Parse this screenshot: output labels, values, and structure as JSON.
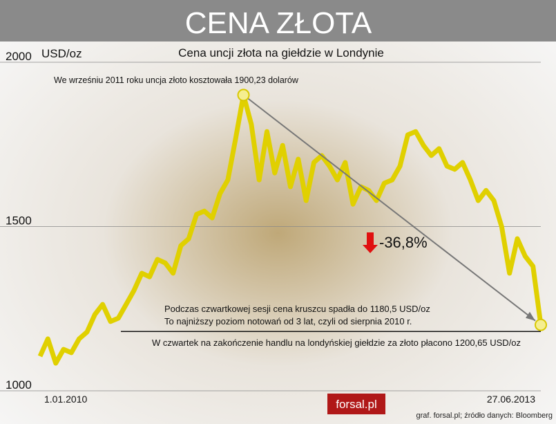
{
  "chart_data": {
    "type": "line",
    "title": "CENA ZŁOTA",
    "subtitle": "Cena uncji złota na giełdzie w Londynie",
    "y_label": "USD/oz",
    "categories": [
      "1.01.2010",
      null,
      null,
      null,
      null,
      null,
      null,
      null,
      null,
      null,
      null,
      null,
      null,
      null,
      null,
      null,
      null,
      null,
      null,
      null,
      null,
      null,
      null,
      null,
      null,
      null,
      null,
      null,
      null,
      null,
      null,
      null,
      null,
      null,
      null,
      null,
      null,
      null,
      null,
      null,
      null,
      null,
      null,
      null,
      null,
      null,
      null,
      null,
      null,
      null,
      null,
      null,
      null,
      null,
      null,
      null,
      null,
      null,
      null,
      null,
      null,
      null,
      null,
      null,
      "27.06.2013"
    ],
    "series": [
      {
        "name": "Cena złota",
        "color": "#e0d000",
        "values": [
          1105,
          1158,
          1084,
          1126,
          1116,
          1158,
          1179,
          1232,
          1263,
          1211,
          1221,
          1263,
          1305,
          1358,
          1347,
          1400,
          1389,
          1358,
          1442,
          1463,
          1537,
          1547,
          1526,
          1600,
          1642,
          1768,
          1900.23,
          1811,
          1642,
          1789,
          1663,
          1747,
          1621,
          1705,
          1579,
          1695,
          1716,
          1684,
          1642,
          1695,
          1568,
          1621,
          1610,
          1579,
          1632,
          1642,
          1684,
          1779,
          1789,
          1747,
          1716,
          1737,
          1684,
          1674,
          1695,
          1642,
          1579,
          1610,
          1579,
          1499,
          1358,
          1463,
          1410,
          1379,
          1200.65
        ]
      }
    ],
    "ylim": [
      1000,
      2000
    ],
    "yticks": [
      1000,
      1500,
      2000
    ],
    "grid": true,
    "reference_value": 1180.5,
    "change_label": "-36,8%",
    "annotations": [
      "We wrześniu 2011 roku uncja złoto kosztowała 1900,23 dolarów",
      "Podczas czwartkowej sesji cena kruszcu spadła do 1180,5 USD/oz",
      "To najniższy poziom notowań od 3 lat, czyli od sierpnia 2010 r.",
      "W czwartek na zakończenie handlu na londyńskiej giełdzie za złoto płacono 1200,65 USD/oz"
    ],
    "logo": "forsal.pl",
    "source": "graf. forsal.pl;  źródło danych: Bloomberg"
  }
}
